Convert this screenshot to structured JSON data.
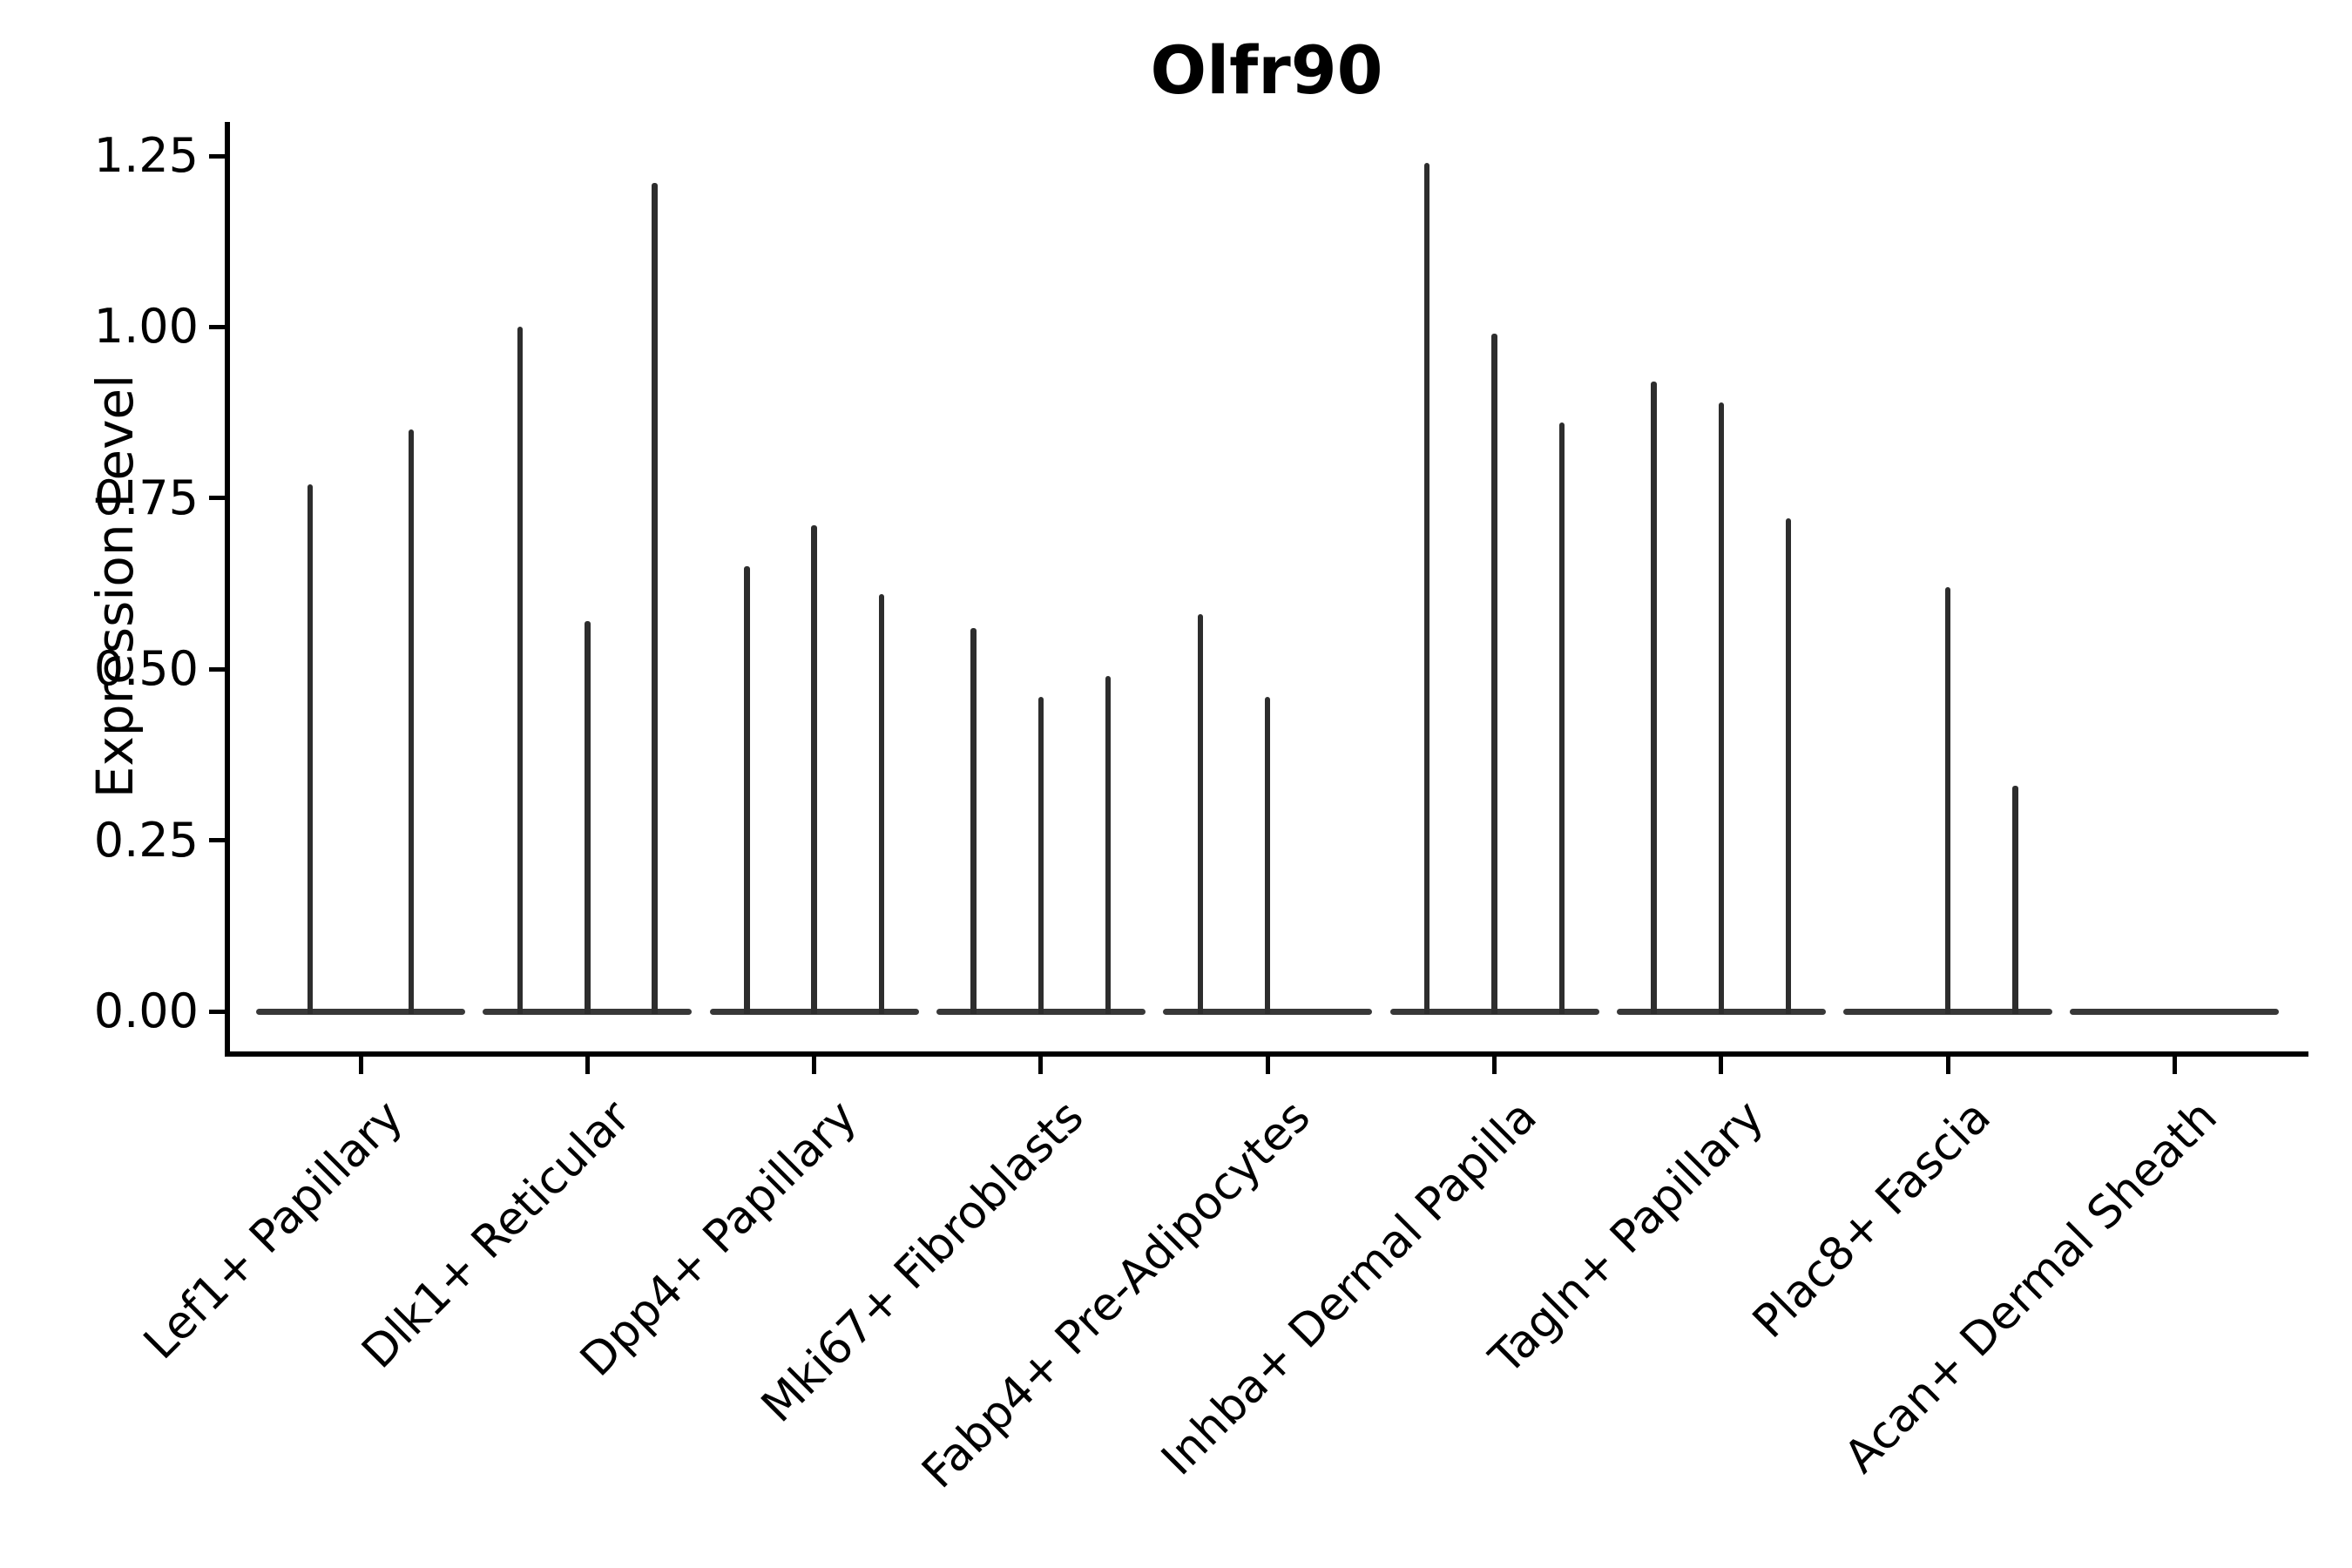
{
  "figure": {
    "background": "#ffffff",
    "accent_color": "#2d2d2d",
    "axis_color": "#000000"
  },
  "chart_data": {
    "type": "violin",
    "title": "Olfr90",
    "xlabel": "",
    "ylabel": "Expression Level",
    "ylim": [
      0,
      1.25
    ],
    "yticks": [
      0.0,
      0.25,
      0.5,
      0.75,
      1.0,
      1.25
    ],
    "ytick_labels": [
      "0.00",
      "0.25",
      "0.50",
      "0.75",
      "1.00",
      "1.25"
    ],
    "grid": false,
    "legend_position": "none",
    "spines": [
      "left",
      "bottom"
    ],
    "description": "Sparse single-cell expression violin plot: each category shows flat violins at 0 with thin vertical spikes reaching each violin's maximum expression value. A value of 0 means a flat violin with no spike.",
    "categories": [
      "Lef1+ Papillary",
      "Dlk1+ Reticular",
      "Dpp4+ Papillary",
      "Mki67+ Fibroblasts",
      "Fabp4+ Pre-Adipocytes",
      "Inhba+ Dermal Papilla",
      "Tagln+ Papillary",
      "Plac8+ Fascia",
      "Acan+ Dermal Sheath"
    ],
    "groups": [
      {
        "label": "Lef1+ Papillary",
        "spike_max_values": [
          0.77,
          0.85
        ]
      },
      {
        "label": "Dlk1+ Reticular",
        "spike_max_values": [
          1.0,
          0.57,
          1.21
        ]
      },
      {
        "label": "Dpp4+ Papillary",
        "spike_max_values": [
          0.65,
          0.71,
          0.61
        ]
      },
      {
        "label": "Mki67+ Fibroblasts",
        "spike_max_values": [
          0.56,
          0.46,
          0.49
        ]
      },
      {
        "label": "Fabp4+ Pre-Adipocytes",
        "spike_max_values": [
          0.58,
          0.46,
          0
        ]
      },
      {
        "label": "Inhba+ Dermal Papilla",
        "spike_max_values": [
          1.24,
          0.99,
          0.86
        ]
      },
      {
        "label": "Tagln+ Papillary",
        "spike_max_values": [
          0.92,
          0.89,
          0.72
        ]
      },
      {
        "label": "Plac8+ Fascia",
        "spike_max_values": [
          0,
          0.62,
          0.33
        ]
      },
      {
        "label": "Acan+ Dermal Sheath",
        "spike_max_values": [
          0,
          0,
          0
        ]
      }
    ]
  }
}
